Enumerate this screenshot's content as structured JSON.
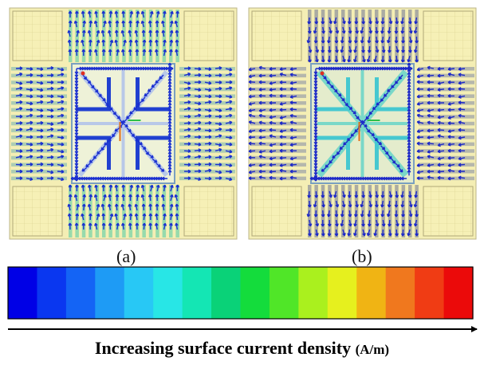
{
  "panels": [
    {
      "id": "a",
      "label": "(a)"
    },
    {
      "id": "b",
      "label": "(b)"
    }
  ],
  "colorbar": {
    "colors": [
      "#0000e6",
      "#0a37f0",
      "#1464f5",
      "#1e9bf5",
      "#28c8f5",
      "#28e6e6",
      "#14e6b4",
      "#0ad278",
      "#14dc3c",
      "#50e628",
      "#aaf01e",
      "#e6f01e",
      "#f0b414",
      "#f0781e",
      "#f03c14",
      "#eb0a0a"
    ]
  },
  "caption": {
    "text": "Increasing surface current density",
    "unit": "(A/m)"
  }
}
